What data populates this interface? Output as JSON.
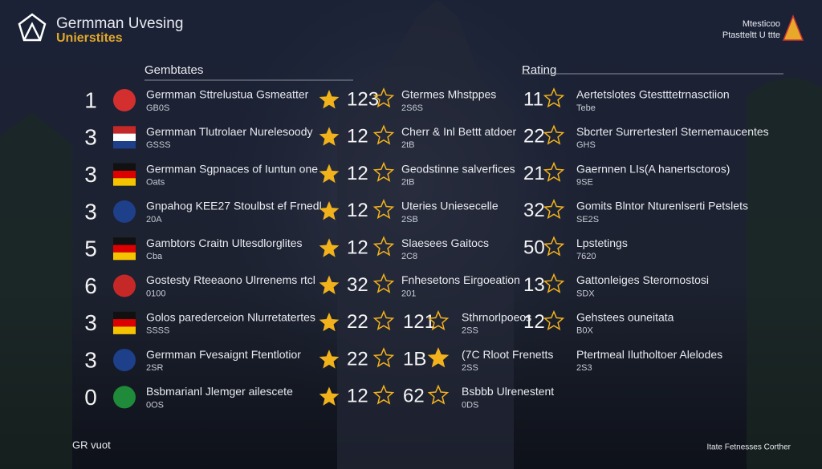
{
  "header": {
    "title": "Germman Uvesing",
    "subtitle": "Unierstites",
    "top_right_1": "Mtesticoo",
    "top_right_2": "Ptastteltt U ttte"
  },
  "columns": {
    "left": "Gembtates",
    "right": "Rating"
  },
  "rows": [
    {
      "rank": "1",
      "name": "Germman Sttrelustua Gsmeatter",
      "sub": "GB0S",
      "score": "123",
      "name2": "Gtermes Mhstppes",
      "sub2": "2S6S",
      "score2": "11",
      "name3": "Aertetslotes Gtestttetrnasctiion",
      "sub3": "Tebe"
    },
    {
      "rank": "3",
      "name": "Germman Tlutrolaer Nurelesoody",
      "sub": "GSSS",
      "score": "12",
      "name2": "Cherr & Inl Bettt atdoer",
      "sub2": "2tB",
      "score2": "22",
      "name3": "Sbcrter Surrertesterl Sternemaucentes",
      "sub3": "GHS"
    },
    {
      "rank": "3",
      "name": "Germman Sgpnaces of Iuntun one",
      "sub": "Oats",
      "score": "12",
      "name2": "Geodstinne salverfices",
      "sub2": "2tB",
      "score2": "21",
      "name3": "Gaernnen LIs(A hanertsctoros)",
      "sub3": "9SE"
    },
    {
      "rank": "3",
      "name": "Gnpahog KEE27 Stoulbst ef Frnedl",
      "sub": "20A",
      "score": "12",
      "name2": "Uteries Uniesecelle",
      "sub2": "2SB",
      "score2": "32",
      "name3": "Gomits Blntor Nturenlserti Petslets",
      "sub3": "SE2S"
    },
    {
      "rank": "5",
      "name": "Gambtors Craitn Ultesdlorglites",
      "sub": "Cba",
      "score": "12",
      "name2": "Slaesees Gaitocs",
      "sub2": "2C8",
      "score2": "50",
      "name3": "Lpstetings",
      "sub3": "7620"
    },
    {
      "rank": "6",
      "name": "Gostesty Rteeaono Ulrrenems rtcl",
      "sub": "0100",
      "score": "32",
      "name2": "Fnhesetons Eirgoeation",
      "sub2": "201",
      "score2": "13",
      "name3": "Gattonleiges Sterornostosi",
      "sub3": "SDX"
    },
    {
      "rank": "3",
      "name": "Golos parederceion Nlurretatertes",
      "sub": "SSSS",
      "score": "22",
      "mid": "121",
      "name2": "Sthrnorlpoeos",
      "sub2": "2SS",
      "score2": "12",
      "name3": "Gehstees ouneitata",
      "sub3": "B0X"
    },
    {
      "rank": "3",
      "name": "Germman Fvesaignt Ftentlotior",
      "sub": "2SR",
      "score": "22",
      "mid": "1B",
      "name2": "(7C Rloot Frenetts",
      "sub2": "2SS",
      "name3": "Ptertmeal Ilutholtoer Alelodes",
      "sub3": "2S3"
    },
    {
      "rank": "0",
      "name": "Bsbmarianl Jlemger ailescete",
      "sub": "0OS",
      "score": "12",
      "mid": "62",
      "name2": "Bsbbb Ulrenestent",
      "sub2": "0DS"
    }
  ],
  "footer": {
    "left": "GR vuot",
    "right": "Itate Fetnesses Corther"
  }
}
